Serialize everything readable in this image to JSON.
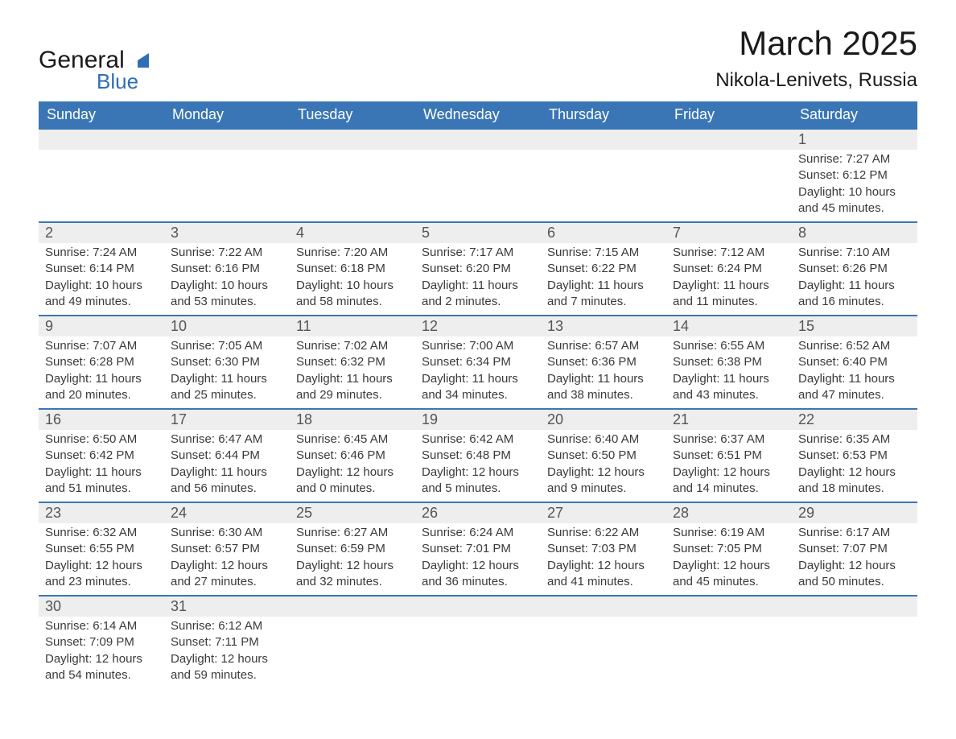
{
  "brand": {
    "name_part1": "General",
    "name_part2": "Blue",
    "color_primary": "#2e6fb4"
  },
  "title": "March 2025",
  "location": "Nikola-Lenivets, Russia",
  "colors": {
    "header_bg": "#3a76b5",
    "header_text": "#ffffff",
    "daynum_bg": "#eeeeee",
    "border": "#3a76b5",
    "body_text": "#3a3a3a",
    "title_text": "#1a1a1a",
    "page_bg": "#ffffff"
  },
  "typography": {
    "title_fontsize_pt": 32,
    "location_fontsize_pt": 18,
    "header_fontsize_pt": 14,
    "daynum_fontsize_pt": 14,
    "body_fontsize_pt": 11
  },
  "weekdays": [
    "Sunday",
    "Monday",
    "Tuesday",
    "Wednesday",
    "Thursday",
    "Friday",
    "Saturday"
  ],
  "grid": {
    "start_weekday_index": 6,
    "weeks": 6
  },
  "days": {
    "1": {
      "sunrise": "7:27 AM",
      "sunset": "6:12 PM",
      "daylight": "10 hours and 45 minutes."
    },
    "2": {
      "sunrise": "7:24 AM",
      "sunset": "6:14 PM",
      "daylight": "10 hours and 49 minutes."
    },
    "3": {
      "sunrise": "7:22 AM",
      "sunset": "6:16 PM",
      "daylight": "10 hours and 53 minutes."
    },
    "4": {
      "sunrise": "7:20 AM",
      "sunset": "6:18 PM",
      "daylight": "10 hours and 58 minutes."
    },
    "5": {
      "sunrise": "7:17 AM",
      "sunset": "6:20 PM",
      "daylight": "11 hours and 2 minutes."
    },
    "6": {
      "sunrise": "7:15 AM",
      "sunset": "6:22 PM",
      "daylight": "11 hours and 7 minutes."
    },
    "7": {
      "sunrise": "7:12 AM",
      "sunset": "6:24 PM",
      "daylight": "11 hours and 11 minutes."
    },
    "8": {
      "sunrise": "7:10 AM",
      "sunset": "6:26 PM",
      "daylight": "11 hours and 16 minutes."
    },
    "9": {
      "sunrise": "7:07 AM",
      "sunset": "6:28 PM",
      "daylight": "11 hours and 20 minutes."
    },
    "10": {
      "sunrise": "7:05 AM",
      "sunset": "6:30 PM",
      "daylight": "11 hours and 25 minutes."
    },
    "11": {
      "sunrise": "7:02 AM",
      "sunset": "6:32 PM",
      "daylight": "11 hours and 29 minutes."
    },
    "12": {
      "sunrise": "7:00 AM",
      "sunset": "6:34 PM",
      "daylight": "11 hours and 34 minutes."
    },
    "13": {
      "sunrise": "6:57 AM",
      "sunset": "6:36 PM",
      "daylight": "11 hours and 38 minutes."
    },
    "14": {
      "sunrise": "6:55 AM",
      "sunset": "6:38 PM",
      "daylight": "11 hours and 43 minutes."
    },
    "15": {
      "sunrise": "6:52 AM",
      "sunset": "6:40 PM",
      "daylight": "11 hours and 47 minutes."
    },
    "16": {
      "sunrise": "6:50 AM",
      "sunset": "6:42 PM",
      "daylight": "11 hours and 51 minutes."
    },
    "17": {
      "sunrise": "6:47 AM",
      "sunset": "6:44 PM",
      "daylight": "11 hours and 56 minutes."
    },
    "18": {
      "sunrise": "6:45 AM",
      "sunset": "6:46 PM",
      "daylight": "12 hours and 0 minutes."
    },
    "19": {
      "sunrise": "6:42 AM",
      "sunset": "6:48 PM",
      "daylight": "12 hours and 5 minutes."
    },
    "20": {
      "sunrise": "6:40 AM",
      "sunset": "6:50 PM",
      "daylight": "12 hours and 9 minutes."
    },
    "21": {
      "sunrise": "6:37 AM",
      "sunset": "6:51 PM",
      "daylight": "12 hours and 14 minutes."
    },
    "22": {
      "sunrise": "6:35 AM",
      "sunset": "6:53 PM",
      "daylight": "12 hours and 18 minutes."
    },
    "23": {
      "sunrise": "6:32 AM",
      "sunset": "6:55 PM",
      "daylight": "12 hours and 23 minutes."
    },
    "24": {
      "sunrise": "6:30 AM",
      "sunset": "6:57 PM",
      "daylight": "12 hours and 27 minutes."
    },
    "25": {
      "sunrise": "6:27 AM",
      "sunset": "6:59 PM",
      "daylight": "12 hours and 32 minutes."
    },
    "26": {
      "sunrise": "6:24 AM",
      "sunset": "7:01 PM",
      "daylight": "12 hours and 36 minutes."
    },
    "27": {
      "sunrise": "6:22 AM",
      "sunset": "7:03 PM",
      "daylight": "12 hours and 41 minutes."
    },
    "28": {
      "sunrise": "6:19 AM",
      "sunset": "7:05 PM",
      "daylight": "12 hours and 45 minutes."
    },
    "29": {
      "sunrise": "6:17 AM",
      "sunset": "7:07 PM",
      "daylight": "12 hours and 50 minutes."
    },
    "30": {
      "sunrise": "6:14 AM",
      "sunset": "7:09 PM",
      "daylight": "12 hours and 54 minutes."
    },
    "31": {
      "sunrise": "6:12 AM",
      "sunset": "7:11 PM",
      "daylight": "12 hours and 59 minutes."
    }
  },
  "labels": {
    "sunrise": "Sunrise: ",
    "sunset": "Sunset: ",
    "daylight": "Daylight: "
  }
}
